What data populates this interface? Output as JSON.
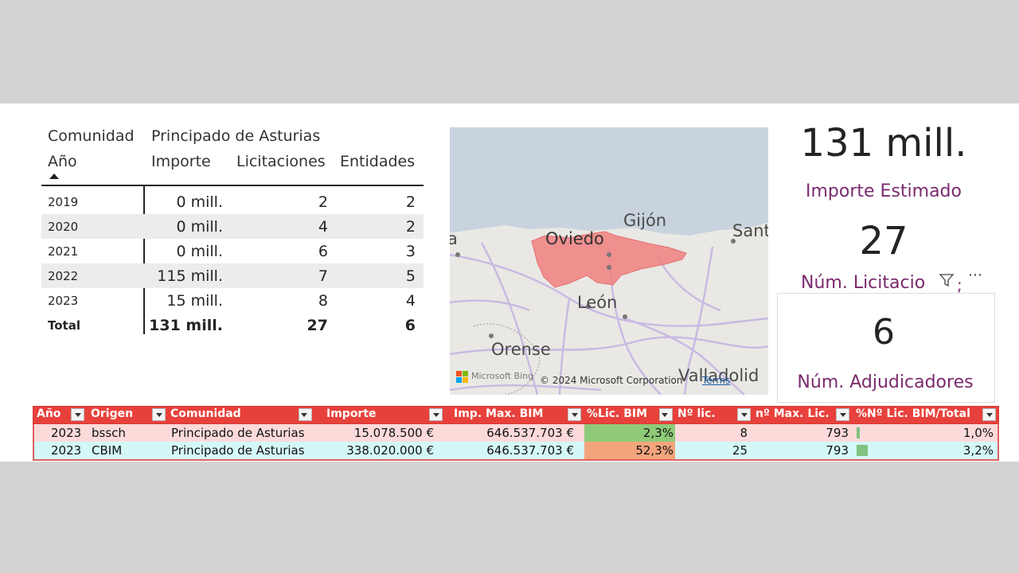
{
  "matrix": {
    "header_row1": {
      "label": "Comunidad",
      "value": "Principado de Asturias"
    },
    "header_row2": {
      "col0": "Año",
      "col1": "Importe",
      "col2": "Licitaciones",
      "col3": "Entidades"
    },
    "rows": [
      {
        "year": "2019",
        "importe": "0 mill.",
        "licitaciones": "2",
        "entidades": "2"
      },
      {
        "year": "2020",
        "importe": "0 mill.",
        "licitaciones": "4",
        "entidades": "2"
      },
      {
        "year": "2021",
        "importe": "0 mill.",
        "licitaciones": "6",
        "entidades": "3"
      },
      {
        "year": "2022",
        "importe": "115 mill.",
        "licitaciones": "7",
        "entidades": "5"
      },
      {
        "year": "2023",
        "importe": "15 mill.",
        "licitaciones": "8",
        "entidades": "4"
      }
    ],
    "total": {
      "label": "Total",
      "importe": "131 mill.",
      "licitaciones": "27",
      "entidades": "6"
    }
  },
  "map": {
    "labels": {
      "gijon": "Gijón",
      "oviedo": "Oviedo",
      "santander": "Sant",
      "leon": "León",
      "orense": "Orense",
      "valladolid": "Valladolid",
      "left_cut": "a"
    },
    "bing_label": "Microsoft Bing",
    "copyright": "© 2024 Microsoft Corporation",
    "terms": "Terms",
    "highlight_color": "#f08080",
    "sea_color": "#c8d3de"
  },
  "cards": {
    "importe": {
      "value": "131 mill.",
      "label": "Importe Estimado"
    },
    "licitaciones": {
      "value": "27",
      "label": "Núm. Licitacio"
    },
    "adjudicadores": {
      "value": "6",
      "label": "Núm. Adjudicadores"
    },
    "more_glyph": "⋯",
    "semicolon": ";"
  },
  "excel": {
    "headers": [
      "Año",
      "Origen",
      "Comunidad",
      "Importe",
      "Imp. Max. BIM",
      "%Lic. BIM",
      "Nº lic.",
      "nº Max. Lic.",
      "%Nº Lic. BIM/Total"
    ],
    "rows": [
      {
        "ano": "2023",
        "origen": "bssch",
        "comunidad": "Principado de Asturias",
        "importe": "15.078.500 €",
        "imp_max": "646.537.703 €",
        "pct_lic": "2,3%",
        "n_lic": "8",
        "n_max": "793",
        "pct_total": "1,0%",
        "pct_total_value": 1.0,
        "pct_color": "#8fca78"
      },
      {
        "ano": "2023",
        "origen": "CBIM",
        "comunidad": "Principado de Asturias",
        "importe": "338.020.000 €",
        "imp_max": "646.537.703 €",
        "pct_lic": "52,3%",
        "n_lic": "25",
        "n_max": "793",
        "pct_total": "3,2%",
        "pct_total_value": 3.2,
        "pct_color": "#f4a47c"
      }
    ],
    "header_color": "#e8413b"
  }
}
